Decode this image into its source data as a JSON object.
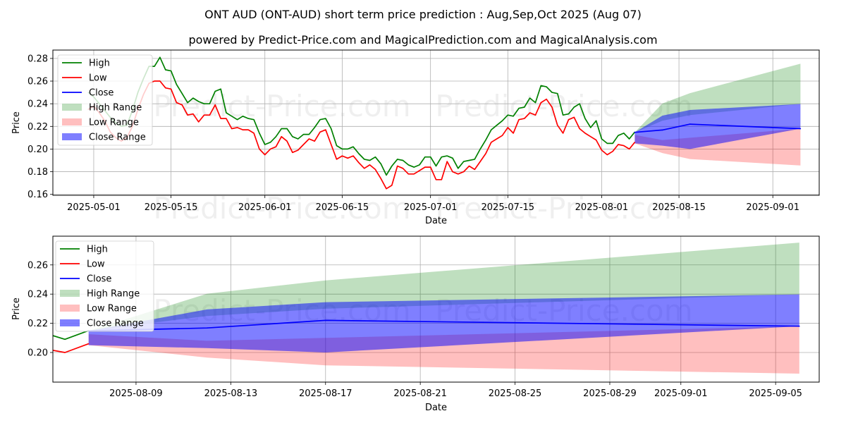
{
  "title": "ONT AUD (ONT-AUD) short term price prediction : Aug,Sep,Oct 2025 (Aug 07)",
  "subtitle": "powered by Predict-Price.com and MagicalPrediction.com and MagicalAnalysis.com",
  "watermark": "Predict-Price.com",
  "colors": {
    "high": "#008000",
    "low": "#ff0000",
    "close": "#0000ff",
    "high_range": "#008000",
    "low_range": "#ff0000",
    "close_range": "#0000ff"
  },
  "chart_data": [
    {
      "type": "line",
      "panel": "top",
      "title": "powered by Predict-Price.com and MagicalPrediction.com and MagicalAnalysis.com",
      "xlabel": "Date",
      "ylabel": "Price",
      "ylim": [
        0.1592,
        0.2874
      ],
      "xlim": [
        "2025-04-23",
        "2025-09-09"
      ],
      "grid": true,
      "legend_position": "top-left",
      "yticks": [
        "0.16",
        "0.18",
        "0.20",
        "0.22",
        "0.24",
        "0.26",
        "0.28"
      ],
      "xticks": [
        "2025-05-01",
        "2025-05-15",
        "2025-06-01",
        "2025-06-15",
        "2025-07-01",
        "2025-07-15",
        "2025-08-01",
        "2025-08-15",
        "2025-09-01"
      ]
    },
    {
      "type": "line",
      "panel": "bottom",
      "xlabel": "Date",
      "ylabel": "Price",
      "ylim": [
        0.1797,
        0.2797
      ],
      "xlim": [
        "2025-08-05",
        "2025-09-06"
      ],
      "grid": true,
      "legend_position": "top-left",
      "yticks": [
        "0.20",
        "0.22",
        "0.24",
        "0.26"
      ],
      "xticks": [
        "2025-08-09",
        "2025-08-13",
        "2025-08-17",
        "2025-08-21",
        "2025-08-25",
        "2025-08-29",
        "2025-09-01",
        "2025-09-05"
      ]
    }
  ],
  "legend": [
    "High",
    "Low",
    "Close",
    "High Range",
    "Low Range",
    "Close Range"
  ],
  "history": {
    "start_date": "2025-04-30",
    "high": [
      0.25,
      0.246,
      0.24,
      0.234,
      0.228,
      0.223,
      0.22,
      0.221,
      0.234,
      0.25,
      0.262,
      0.273,
      0.273,
      0.281,
      0.27,
      0.269,
      0.257,
      0.249,
      0.241,
      0.245,
      0.242,
      0.24,
      0.24,
      0.251,
      0.253,
      0.232,
      0.229,
      0.226,
      0.229,
      0.227,
      0.226,
      0.214,
      0.204,
      0.206,
      0.211,
      0.218,
      0.218,
      0.211,
      0.209,
      0.213,
      0.213,
      0.219,
      0.226,
      0.227,
      0.218,
      0.203,
      0.2,
      0.2,
      0.202,
      0.196,
      0.191,
      0.19,
      0.193,
      0.187,
      0.177,
      0.185,
      0.191,
      0.19,
      0.186,
      0.184,
      0.186,
      0.193,
      0.193,
      0.185,
      0.193,
      0.194,
      0.192,
      0.183,
      0.189,
      0.19,
      0.191,
      0.2,
      0.208,
      0.217,
      0.221,
      0.225,
      0.23,
      0.229,
      0.236,
      0.237,
      0.245,
      0.241,
      0.256,
      0.255,
      0.25,
      0.249,
      0.23,
      0.231,
      0.237,
      0.24,
      0.227,
      0.219,
      0.225,
      0.209,
      0.205,
      0.205,
      0.212,
      0.214,
      0.209,
      0.215
    ],
    "low": [
      0.235,
      0.238,
      0.232,
      0.225,
      0.215,
      0.21,
      0.207,
      0.21,
      0.22,
      0.235,
      0.248,
      0.258,
      0.26,
      0.26,
      0.254,
      0.253,
      0.241,
      0.239,
      0.23,
      0.231,
      0.224,
      0.23,
      0.23,
      0.239,
      0.227,
      0.227,
      0.218,
      0.219,
      0.217,
      0.217,
      0.214,
      0.2,
      0.195,
      0.2,
      0.202,
      0.211,
      0.207,
      0.197,
      0.199,
      0.204,
      0.209,
      0.207,
      0.215,
      0.217,
      0.204,
      0.191,
      0.194,
      0.192,
      0.194,
      0.188,
      0.183,
      0.186,
      0.182,
      0.174,
      0.165,
      0.168,
      0.185,
      0.183,
      0.178,
      0.178,
      0.181,
      0.184,
      0.184,
      0.173,
      0.173,
      0.189,
      0.18,
      0.178,
      0.18,
      0.185,
      0.182,
      0.189,
      0.196,
      0.206,
      0.209,
      0.212,
      0.219,
      0.214,
      0.226,
      0.227,
      0.232,
      0.23,
      0.241,
      0.244,
      0.237,
      0.221,
      0.214,
      0.226,
      0.228,
      0.218,
      0.214,
      0.211,
      0.208,
      0.199,
      0.195,
      0.198,
      0.204,
      0.203,
      0.2,
      0.206
    ]
  },
  "forecast": {
    "dates": [
      "2025-08-07",
      "2025-08-12",
      "2025-08-17",
      "2025-09-06"
    ],
    "close": [
      0.2148,
      0.2168,
      0.222,
      0.218
    ],
    "close_range_high": [
      0.2148,
      0.2295,
      0.2345,
      0.2398
    ],
    "close_range_low": [
      0.205,
      0.203,
      0.2,
      0.218
    ],
    "high_range_high": [
      0.2148,
      0.2403,
      0.2494,
      0.2753
    ],
    "high_range_low": [
      0.2148,
      0.225,
      0.23,
      0.2398
    ],
    "low_range_high": [
      0.2125,
      0.208,
      0.21,
      0.218
    ],
    "low_range_low": [
      0.205,
      0.1965,
      0.1912,
      0.1855
    ]
  }
}
